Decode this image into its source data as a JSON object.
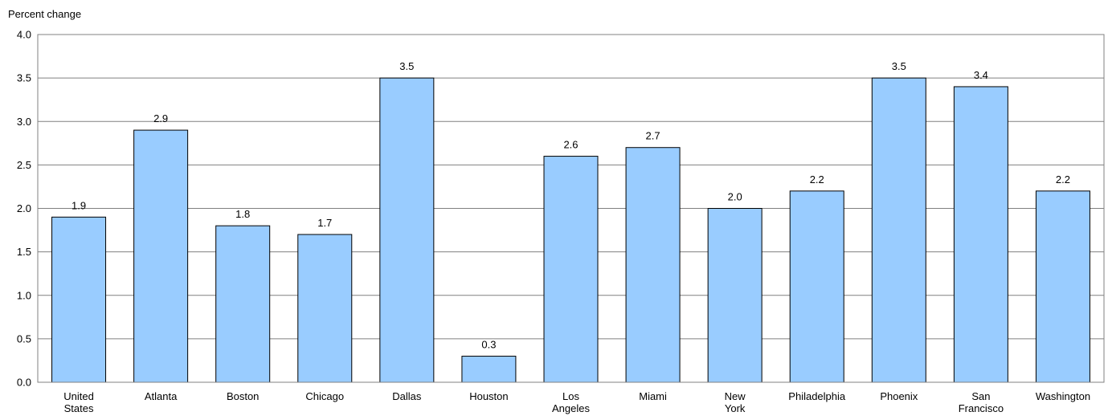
{
  "chart_data": {
    "type": "bar",
    "title": "",
    "xlabel": "",
    "ylabel": "Percent change",
    "ylim": [
      0,
      4.0
    ],
    "yticks": [
      "0.0",
      "0.5",
      "1.0",
      "1.5",
      "2.0",
      "2.5",
      "3.0",
      "3.5",
      "4.0"
    ],
    "grid": true,
    "categories": [
      [
        "United",
        "States"
      ],
      [
        "Atlanta"
      ],
      [
        "Boston"
      ],
      [
        "Chicago"
      ],
      [
        "Dallas"
      ],
      [
        "Houston"
      ],
      [
        "Los",
        "Angeles"
      ],
      [
        "Miami"
      ],
      [
        "New",
        "York"
      ],
      [
        "Philadelphia"
      ],
      [
        "Phoenix"
      ],
      [
        "San",
        "Francisco"
      ],
      [
        "Washington"
      ]
    ],
    "values": [
      1.9,
      2.9,
      1.8,
      1.7,
      3.5,
      0.3,
      2.6,
      2.7,
      2.0,
      2.2,
      3.5,
      3.4,
      2.2
    ],
    "data_labels": [
      "1.9",
      "2.9",
      "1.8",
      "1.7",
      "3.5",
      "0.3",
      "2.6",
      "2.7",
      "2.0",
      "2.2",
      "3.5",
      "3.4",
      "2.2"
    ],
    "colors": {
      "bar_fill": "#99CCFF",
      "bar_stroke": "#000000",
      "grid": "#808080",
      "frame": "#808080"
    }
  }
}
